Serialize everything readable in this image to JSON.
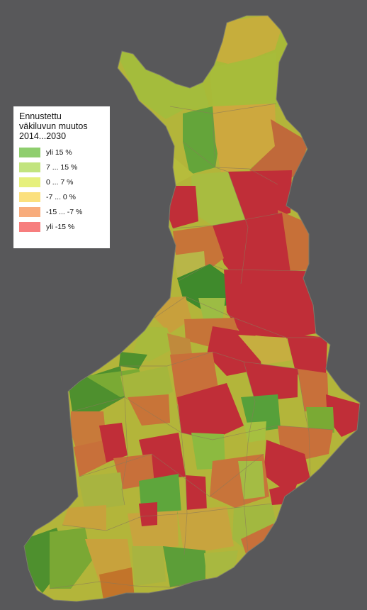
{
  "legend": {
    "title_lines": [
      "Ennustettu",
      "väkiluvun muutos",
      "2014...2030"
    ],
    "items": [
      {
        "label": "yli 15 %",
        "color": "#8fce6e"
      },
      {
        "label": "7 ... 15 %",
        "color": "#c2e47e"
      },
      {
        "label": "0 ... 7 %",
        "color": "#e6f07c"
      },
      {
        "label": "-7 ... 0 %",
        "color": "#fbe07e"
      },
      {
        "label": "-15 ... -7 %",
        "color": "#f8ac7c"
      },
      {
        "label": "yli -15 %",
        "color": "#f77e7e"
      }
    ]
  },
  "map_colors": {
    "background": "#58585a",
    "strong_growth": "#4e8f2c",
    "growth": "#8fb032",
    "mild_growth": "#b3c03c",
    "mild_decline": "#c8a83c",
    "decline": "#c8703a",
    "strong_decline": "#c02e38",
    "border": "#8a7a5a"
  }
}
